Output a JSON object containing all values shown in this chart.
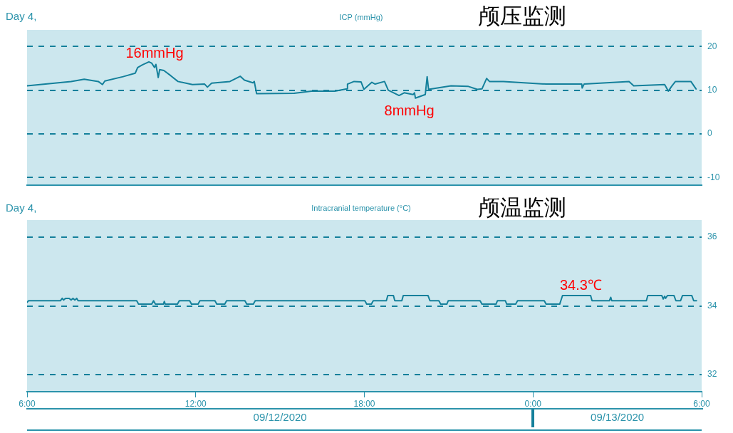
{
  "chart_data": [
    {
      "type": "line",
      "title": "颅压监测",
      "subtitle": "ICP (mmHg)",
      "annotations": [
        "Day 4,",
        {
          "text": "16mmHg",
          "x": "2020-09-12T10:20",
          "y": 16
        },
        {
          "text": "8mmHg",
          "x": "2020-09-12T19:48",
          "y": 8
        }
      ],
      "x": [
        "2020-09-12T06:00",
        "2020-09-12T07:34",
        "2020-09-12T08:02",
        "2020-09-12T08:32",
        "2020-09-12T08:41",
        "2020-09-12T08:46",
        "2020-09-12T09:25",
        "2020-09-12T09:51",
        "2020-09-12T09:56",
        "2020-09-12T10:06",
        "2020-09-12T10:20",
        "2020-09-12T10:26",
        "2020-09-12T10:32",
        "2020-09-12T10:35",
        "2020-09-12T10:40",
        "2020-09-12T10:43",
        "2020-09-12T10:52",
        "2020-09-12T11:07",
        "2020-09-12T11:22",
        "2020-09-12T11:53",
        "2020-09-12T12:19",
        "2020-09-12T12:25",
        "2020-09-12T12:34",
        "2020-09-12T13:13",
        "2020-09-12T13:35",
        "2020-09-12T13:44",
        "2020-09-12T14:02",
        "2020-09-12T14:05",
        "2020-09-12T14:10",
        "2020-09-12T15:30",
        "2020-09-12T16:07",
        "2020-09-12T16:57",
        "2020-09-12T17:23",
        "2020-09-12T17:24",
        "2020-09-12T17:38",
        "2020-09-12T17:53",
        "2020-09-12T17:59",
        "2020-09-12T18:16",
        "2020-09-12T18:23",
        "2020-09-12T18:43",
        "2020-09-12T18:51",
        "2020-09-12T19:14",
        "2020-09-12T19:25",
        "2020-09-12T19:44",
        "2020-09-12T19:47",
        "2020-09-12T19:49",
        "2020-09-12T20:10",
        "2020-09-12T20:14",
        "2020-09-12T20:17",
        "2020-09-12T21:05",
        "2020-09-12T21:41",
        "2020-09-12T22:01",
        "2020-09-12T22:11",
        "2020-09-12T22:21",
        "2020-09-12T22:27",
        "2020-09-12T22:57",
        "2020-09-13T00:28",
        "2020-09-13T01:44",
        "2020-09-13T01:45",
        "2020-09-13T01:49",
        "2020-09-13T03:25",
        "2020-09-13T03:35",
        "2020-09-13T04:41",
        "2020-09-13T04:49",
        "2020-09-13T04:56",
        "2020-09-13T05:04",
        "2020-09-13T05:37",
        "2020-09-13T05:48"
      ],
      "values": [
        11.0,
        12.0,
        12.5,
        12.0,
        11.3,
        12.1,
        13.1,
        13.9,
        15.2,
        15.8,
        16.5,
        16.2,
        15.2,
        15.9,
        12.9,
        14.7,
        14.5,
        13.3,
        12.0,
        11.3,
        11.4,
        10.7,
        11.6,
        12.0,
        13.2,
        12.3,
        11.7,
        12.0,
        9.2,
        9.3,
        9.8,
        9.8,
        10.3,
        11.4,
        12.0,
        11.9,
        10.2,
        11.8,
        11.4,
        12.0,
        10.0,
        8.8,
        9.4,
        9.0,
        9.4,
        8.2,
        9.0,
        13.1,
        10.2,
        11.0,
        10.9,
        10.2,
        10.3,
        12.7,
        12.0,
        12.0,
        11.4,
        11.4,
        10.5,
        11.4,
        12.0,
        11.0,
        11.3,
        9.8,
        10.9,
        12.0,
        12.0,
        10.3
      ],
      "color": "#14809b",
      "xlim": [
        "2020-09-12T06:00",
        "2020-09-13T06:00"
      ],
      "ylim": [
        -11.7,
        23.8
      ],
      "yticks": [
        -10,
        0,
        10,
        20
      ],
      "grid": "y",
      "marker": "none",
      "line_style": "solid",
      "tick_labels": "y"
    },
    {
      "type": "line",
      "title": "颅温监测",
      "subtitle": "Intracranial temperature (°C)",
      "annotations": [
        "Day 4,",
        {
          "text": "34.3℃",
          "x": "2020-09-13T01:30",
          "y": 34.3
        }
      ],
      "x": [
        "2020-09-12T06:00",
        "2020-09-12T06:03",
        "2020-09-12T07:11",
        "2020-09-12T07:15",
        "2020-09-12T07:18",
        "2020-09-12T07:22",
        "2020-09-12T07:30",
        "2020-09-12T07:34",
        "2020-09-12T07:38",
        "2020-09-12T07:42",
        "2020-09-12T07:46",
        "2020-09-12T07:49",
        "2020-09-12T09:54",
        "2020-09-12T09:58",
        "2020-09-12T10:26",
        "2020-09-12T10:30",
        "2020-09-12T10:34",
        "2020-09-12T10:51",
        "2020-09-12T10:53",
        "2020-09-12T10:55",
        "2020-09-12T11:21",
        "2020-09-12T11:25",
        "2020-09-12T11:47",
        "2020-09-12T11:51",
        "2020-09-12T12:05",
        "2020-09-12T12:09",
        "2020-09-12T12:41",
        "2020-09-12T12:45",
        "2020-09-12T13:02",
        "2020-09-12T13:06",
        "2020-09-12T13:45",
        "2020-09-12T13:49",
        "2020-09-12T14:03",
        "2020-09-12T14:07",
        "2020-09-12T18:01",
        "2020-09-12T18:05",
        "2020-09-12T18:15",
        "2020-09-12T18:19",
        "2020-09-12T18:47",
        "2020-09-12T18:50",
        "2020-09-12T19:02",
        "2020-09-12T19:05",
        "2020-09-12T19:20",
        "2020-09-12T19:23",
        "2020-09-12T20:16",
        "2020-09-12T20:20",
        "2020-09-12T20:39",
        "2020-09-12T20:43",
        "2020-09-12T20:56",
        "2020-09-12T20:59",
        "2020-09-12T22:07",
        "2020-09-12T22:11",
        "2020-09-12T22:41",
        "2020-09-12T22:44",
        "2020-09-12T23:01",
        "2020-09-12T23:04",
        "2020-09-12T23:23",
        "2020-09-12T23:27",
        "2020-09-13T00:24",
        "2020-09-13T00:28",
        "2020-09-13T00:57",
        "2020-09-13T01:03",
        "2020-09-13T02:03",
        "2020-09-13T02:06",
        "2020-09-13T02:43",
        "2020-09-13T02:46",
        "2020-09-13T02:48",
        "2020-09-13T04:02",
        "2020-09-13T04:05",
        "2020-09-13T04:35",
        "2020-09-13T04:38",
        "2020-09-13T04:41",
        "2020-09-13T04:43",
        "2020-09-13T04:47",
        "2020-09-13T05:01",
        "2020-09-13T05:05",
        "2020-09-13T05:15",
        "2020-09-13T05:19",
        "2020-09-13T05:39",
        "2020-09-13T05:43",
        "2020-09-13T05:49"
      ],
      "values": [
        34.1,
        34.15,
        34.15,
        34.22,
        34.17,
        34.22,
        34.22,
        34.17,
        34.22,
        34.17,
        34.22,
        34.15,
        34.15,
        34.05,
        34.05,
        34.15,
        34.05,
        34.05,
        34.13,
        34.05,
        34.05,
        34.15,
        34.15,
        34.05,
        34.05,
        34.15,
        34.15,
        34.05,
        34.05,
        34.15,
        34.15,
        34.05,
        34.05,
        34.15,
        34.15,
        34.05,
        34.05,
        34.15,
        34.15,
        34.3,
        34.3,
        34.15,
        34.15,
        34.3,
        34.3,
        34.15,
        34.15,
        34.05,
        34.05,
        34.15,
        34.15,
        34.05,
        34.05,
        34.15,
        34.15,
        34.05,
        34.05,
        34.15,
        34.15,
        34.05,
        34.05,
        34.3,
        34.3,
        34.15,
        34.15,
        34.25,
        34.15,
        34.15,
        34.3,
        34.3,
        34.2,
        34.28,
        34.22,
        34.3,
        34.3,
        34.15,
        34.15,
        34.3,
        34.3,
        34.15,
        34.15
      ],
      "color": "#14809b",
      "xlim": [
        "2020-09-12T06:00",
        "2020-09-13T06:00"
      ],
      "xticks": [
        {
          "value": "2020-09-12T06:00",
          "label": "6:00"
        },
        {
          "value": "2020-09-12T12:00",
          "label": "12:00"
        },
        {
          "value": "2020-09-12T18:00",
          "label": "18:00"
        },
        {
          "value": "2020-09-13T00:00",
          "label": "0:00"
        },
        {
          "value": "2020-09-13T06:00",
          "label": "6:00"
        }
      ],
      "x2lim": [
        "2020-09-12T06:00",
        "2020-09-13T06:00"
      ],
      "x2ticks": [
        {
          "value": "2020-09-12T15:00",
          "label": "09/12/2020"
        },
        {
          "value": "2020-09-13T00:00",
          "label": null
        },
        {
          "value": "2020-09-13T03:00",
          "label": "09/13/2020"
        }
      ],
      "ylim": [
        31.5,
        36.5
      ],
      "yticks": [
        32,
        34,
        36
      ],
      "grid": "y",
      "marker": "none",
      "line_style": "solid"
    }
  ]
}
